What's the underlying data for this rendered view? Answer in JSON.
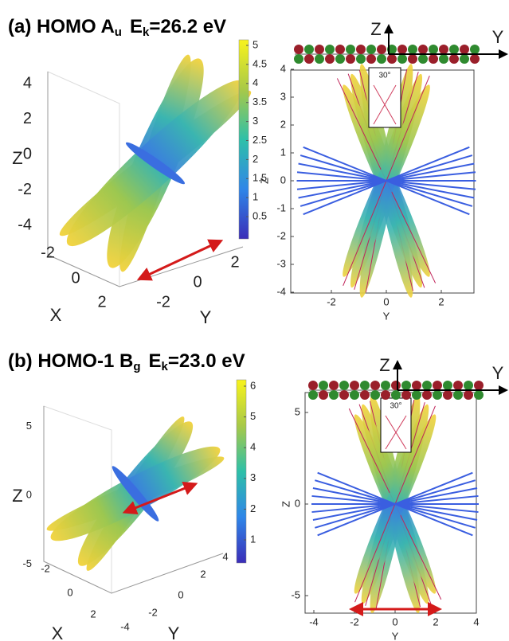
{
  "panels": [
    {
      "title": {
        "label": "(a) HOMO A",
        "symmetry": "u",
        "energy": "E",
        "energy_sub": "k",
        "energy_value": "=26.2 eV"
      },
      "view3d": {
        "z_label": "Z",
        "x_label": "X",
        "y_label": "Y",
        "z_ticks": [
          4,
          2,
          0,
          -2,
          -4
        ],
        "x_ticks": [
          -2,
          0,
          2
        ],
        "y_ticks": [
          -2,
          0,
          2
        ]
      },
      "colorbar": {
        "ticks": [
          5,
          4.5,
          4,
          3.5,
          3,
          2.5,
          2,
          1.5,
          1,
          0.5
        ]
      },
      "side_view": {
        "z_label": "Z",
        "y_label": "Y",
        "z_ticks": [
          4,
          3,
          2,
          1,
          0,
          -1,
          -2,
          -3,
          -4
        ],
        "y_ticks": [
          -2,
          0,
          2
        ],
        "inset_angle": "30°",
        "orbital_axes": {
          "z": "Z",
          "y": "Y"
        }
      }
    },
    {
      "title": {
        "label": "(b) HOMO-1 B",
        "symmetry": "g",
        "energy": "E",
        "energy_sub": "k",
        "energy_value": "=23.0 eV"
      },
      "view3d": {
        "z_label": "Z",
        "x_label": "X",
        "y_label": "Y",
        "z_ticks": [
          5,
          0,
          -5
        ],
        "x_ticks": [
          -2,
          0,
          2
        ],
        "y_ticks": [
          -4,
          -2,
          0,
          2,
          4
        ]
      },
      "colorbar": {
        "ticks": [
          6,
          5,
          4,
          3,
          2,
          1
        ]
      },
      "side_view": {
        "z_label": "Z",
        "y_label": "Y",
        "z_ticks": [
          5,
          0,
          -5
        ],
        "y_ticks": [
          -4,
          -2,
          0,
          2,
          4
        ],
        "inset_angle": "30°",
        "orbital_axes": {
          "z": "Z",
          "y": "Y"
        }
      }
    }
  ]
}
